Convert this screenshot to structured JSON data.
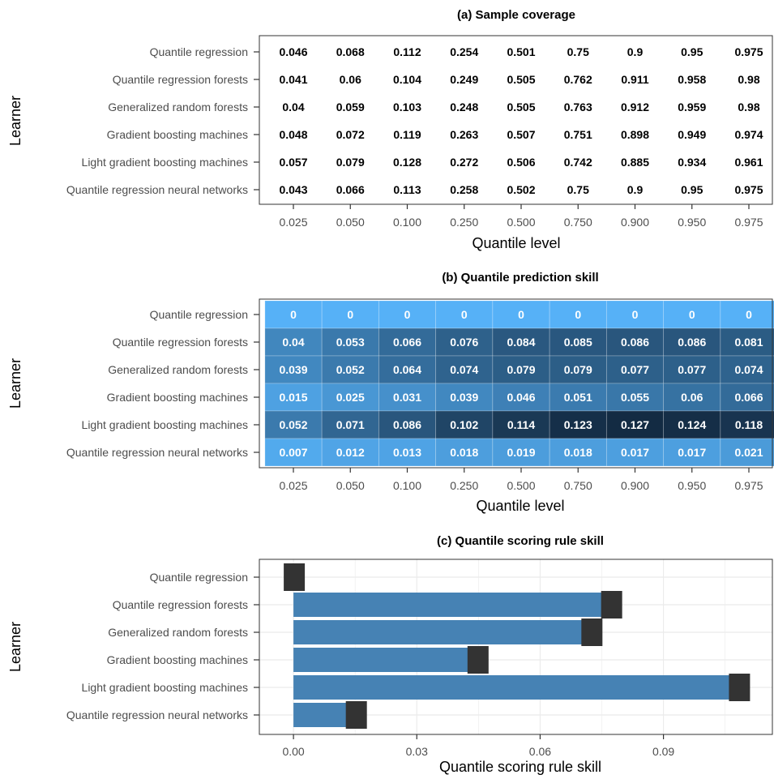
{
  "chart_data": [
    {
      "type": "table",
      "title": "(a) Sample coverage",
      "xlabel": "Quantile level",
      "ylabel": "Learner",
      "categories": [
        "0.025",
        "0.050",
        "0.100",
        "0.250",
        "0.500",
        "0.750",
        "0.900",
        "0.950",
        "0.975"
      ],
      "rows": [
        "Quantile regression",
        "Quantile regression forests",
        "Generalized random forests",
        "Gradient boosting machines",
        "Light gradient boosting machines",
        "Quantile regression neural networks"
      ],
      "values": [
        [
          "0.046",
          "0.068",
          "0.112",
          "0.254",
          "0.501",
          "0.75",
          "0.9",
          "0.95",
          "0.975"
        ],
        [
          "0.041",
          "0.06",
          "0.104",
          "0.249",
          "0.505",
          "0.762",
          "0.911",
          "0.958",
          "0.98"
        ],
        [
          "0.04",
          "0.059",
          "0.103",
          "0.248",
          "0.505",
          "0.763",
          "0.912",
          "0.959",
          "0.98"
        ],
        [
          "0.048",
          "0.072",
          "0.119",
          "0.263",
          "0.507",
          "0.751",
          "0.898",
          "0.949",
          "0.974"
        ],
        [
          "0.057",
          "0.079",
          "0.128",
          "0.272",
          "0.506",
          "0.742",
          "0.885",
          "0.934",
          "0.961"
        ],
        [
          "0.043",
          "0.066",
          "0.113",
          "0.258",
          "0.502",
          "0.75",
          "0.9",
          "0.95",
          "0.975"
        ]
      ]
    },
    {
      "type": "heatmap",
      "title": "(b) Quantile prediction skill",
      "xlabel": "Quantile level",
      "ylabel": "Learner",
      "categories": [
        "0.025",
        "0.050",
        "0.100",
        "0.250",
        "0.500",
        "0.750",
        "0.900",
        "0.950",
        "0.975"
      ],
      "rows": [
        "Quantile regression",
        "Quantile regression forests",
        "Generalized random forests",
        "Gradient boosting machines",
        "Light gradient boosting machines",
        "Quantile regression neural networks"
      ],
      "values": [
        [
          "0",
          "0",
          "0",
          "0",
          "0",
          "0",
          "0",
          "0",
          "0"
        ],
        [
          "0.04",
          "0.053",
          "0.066",
          "0.076",
          "0.084",
          "0.085",
          "0.086",
          "0.086",
          "0.081"
        ],
        [
          "0.039",
          "0.052",
          "0.064",
          "0.074",
          "0.079",
          "0.079",
          "0.077",
          "0.077",
          "0.074"
        ],
        [
          "0.015",
          "0.025",
          "0.031",
          "0.039",
          "0.046",
          "0.051",
          "0.055",
          "0.06",
          "0.066"
        ],
        [
          "0.052",
          "0.071",
          "0.086",
          "0.102",
          "0.114",
          "0.123",
          "0.127",
          "0.124",
          "0.118"
        ],
        [
          "0.007",
          "0.012",
          "0.013",
          "0.018",
          "0.019",
          "0.018",
          "0.017",
          "0.017",
          "0.021"
        ]
      ],
      "color_low": "#56b1f7",
      "color_high": "#132b43",
      "value_range": [
        0,
        0.127
      ]
    },
    {
      "type": "bar",
      "orientation": "horizontal",
      "title": "(c) Quantile scoring rule skill",
      "xlabel": "Quantile scoring rule skill",
      "ylabel": "Learner",
      "categories": [
        "Quantile regression",
        "Quantile regression forests",
        "Generalized random forests",
        "Gradient boosting machines",
        "Light gradient boosting machines",
        "Quantile regression neural networks"
      ],
      "values": [
        0,
        0.0772,
        0.0724,
        0.0447,
        0.1083,
        0.0151
      ],
      "xlim": [
        -0.0083,
        0.1165
      ],
      "x_ticks": [
        "0.00",
        "0.03",
        "0.06",
        "0.09"
      ],
      "x_tick_values": [
        0,
        0.03,
        0.06,
        0.09
      ],
      "bar_color": "#4682b4",
      "end_marker_color": "#333333",
      "grid": true
    }
  ]
}
